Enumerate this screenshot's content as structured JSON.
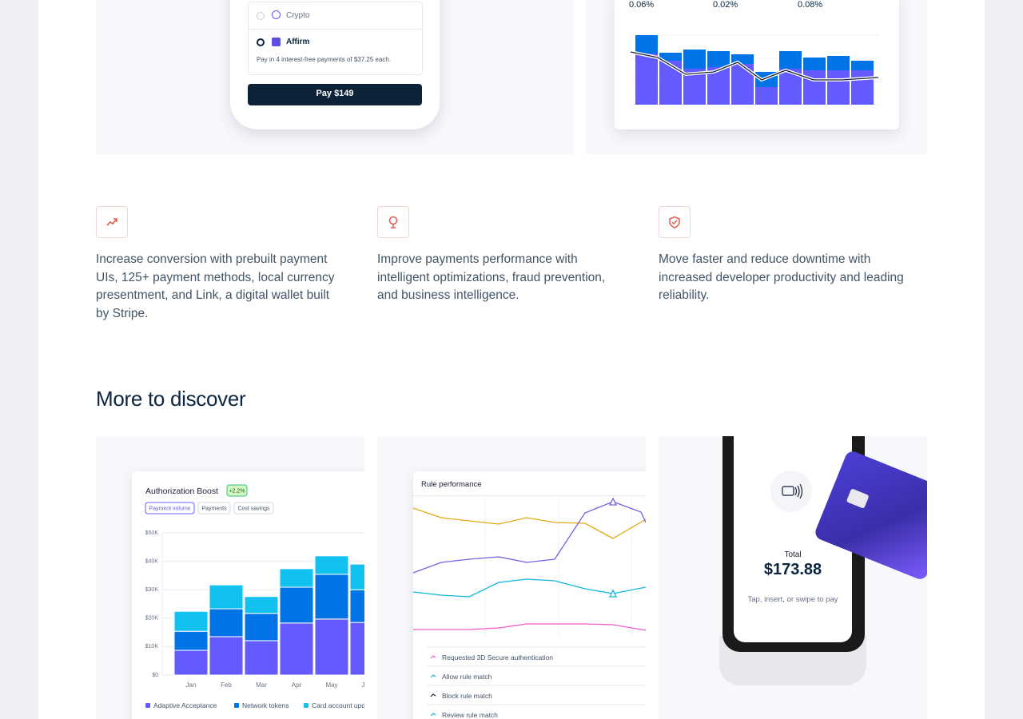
{
  "top": {
    "payment_options": [
      "Crypto",
      "Affirm"
    ],
    "affirm_note": "Pay in 4 interest-free payments of $37.25 each.",
    "pay_button": "Pay $149",
    "rates": [
      "0.06%",
      "0.02%",
      "0.08%"
    ]
  },
  "features": [
    {
      "text": "Increase conversion with prebuilt payment UIs, 125+ payment methods, local currency presentment, and Link, a digital wallet built by Stripe."
    },
    {
      "text": "Improve payments performance with intelligent optimizations, fraud prevention, and business intelligence."
    },
    {
      "text": "Move faster and reduce downtime with increased developer productivity and leading reliability."
    }
  ],
  "section_title": "More to discover",
  "cards": [
    {
      "chart_data": {
        "type": "stacked-bar",
        "title": "Authorization Boost",
        "badge": "+2.2%",
        "tabs": [
          "Payment volume",
          "Payments",
          "Cost savings"
        ],
        "categories": [
          "Jan",
          "Feb",
          "Mar",
          "Apr",
          "May",
          "Jun"
        ],
        "series": [
          {
            "name": "Adaptive Acceptance",
            "color": "#635bff",
            "values": [
              8700,
              13500,
              12100,
              18300,
              19700,
              18500
            ]
          },
          {
            "name": "Network tokens",
            "color": "#0073e6",
            "values": [
              6700,
              9800,
              9600,
              12600,
              15700,
              11500
            ]
          },
          {
            "name": "Card account updater",
            "color": "#11c1ef",
            "values": [
              7000,
              8400,
              5900,
              6500,
              6500,
              9000
            ]
          }
        ],
        "ylim": [
          0,
          50000
        ],
        "yticks": [
          {
            "value": 0,
            "label": "$0"
          },
          {
            "value": 10000,
            "label": "$10K"
          },
          {
            "value": 20000,
            "label": "$20K"
          },
          {
            "value": 30000,
            "label": "$30K"
          },
          {
            "value": 40000,
            "label": "$40K"
          },
          {
            "value": 50000,
            "label": "$50K"
          }
        ],
        "grid": true
      }
    },
    {
      "title": "Rule performance",
      "legend": [
        "Requested 3D Secure authentication",
        "Allow rule match",
        "Block rule match",
        "Review rule match"
      ]
    },
    {
      "total_label": "Total",
      "amount": "$173.88",
      "instruction": "Tap, insert, or swipe to pay"
    }
  ]
}
